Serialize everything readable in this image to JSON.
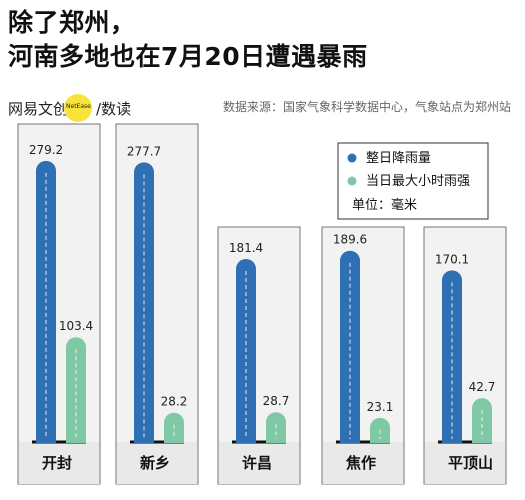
{
  "header": {
    "title_line1": "除了郑州，",
    "title_line2": "河南多地也在7月20日遭遇暴雨",
    "brand_left": "网易文创",
    "brand_badge": "NetEase",
    "brand_right": "/数读",
    "source": "数据来源：国家气象科学数据中心，气象站点为郑州站"
  },
  "colors": {
    "daily": "#2f6fb3",
    "hourly": "#7ec8a6",
    "panel_bg": "#f2f2f2",
    "panel_border": "#777777",
    "label_bg": "#e9e9e9"
  },
  "chart_data": {
    "type": "bar",
    "categories": [
      "开封",
      "新乡",
      "许昌",
      "焦作",
      "平顶山"
    ],
    "series": [
      {
        "name": "整日降雨量",
        "values": [
          279.2,
          277.7,
          181.4,
          189.6,
          170.1
        ]
      },
      {
        "name": "当日最大小时雨强",
        "values": [
          103.4,
          28.2,
          28.7,
          23.1,
          42.7
        ]
      }
    ],
    "value_labels": [
      [
        "279.2",
        "277.7",
        "181.4",
        "189.6",
        "170.1"
      ],
      [
        "103.4",
        "28.2",
        "28.7",
        "23.1",
        "42.7"
      ]
    ],
    "legend_unit": "单位：毫米",
    "legend_position": "top-right",
    "ylim": [
      0,
      290
    ]
  }
}
